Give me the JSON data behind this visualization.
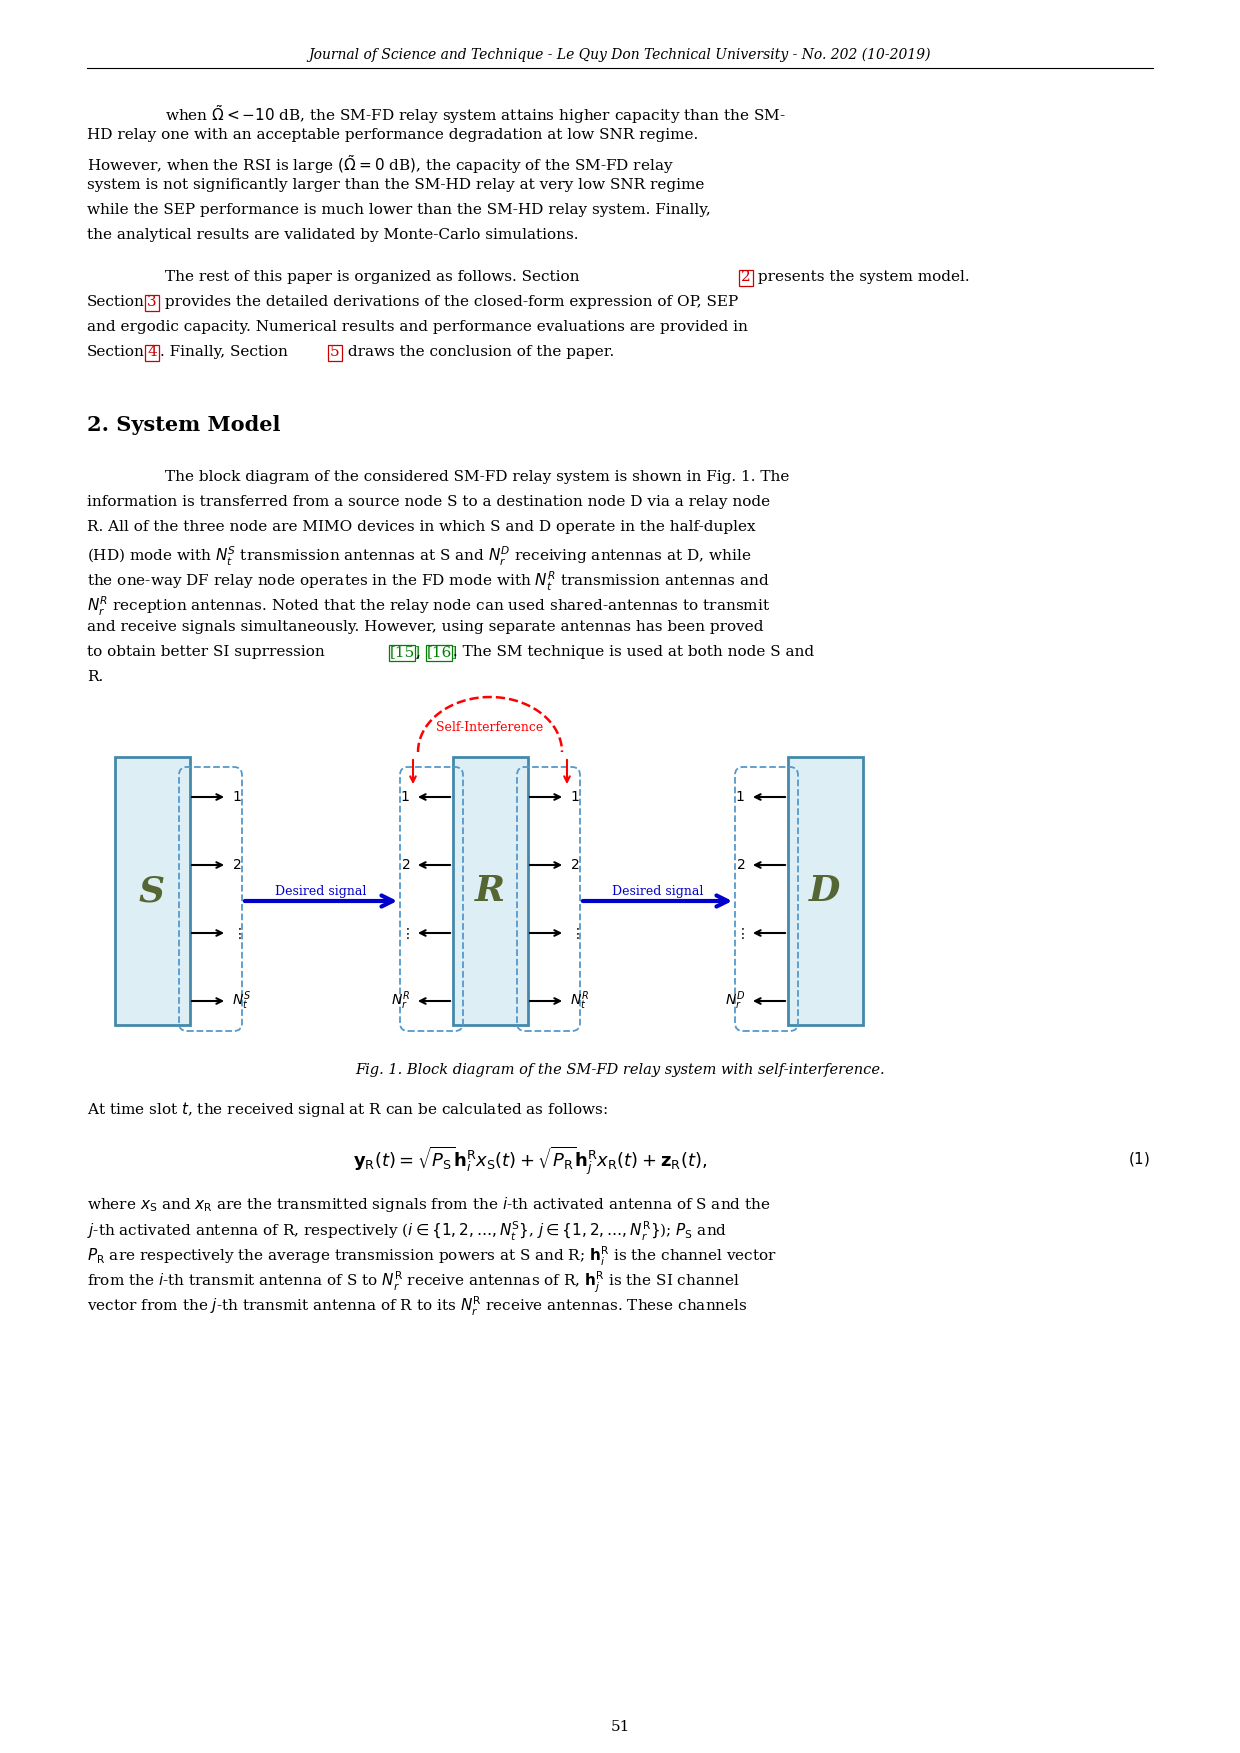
{
  "header": "Journal of Science and Technique - Le Quy Don Technical University - No. 202 (10-2019)",
  "section_title": "2. System Model",
  "fig_caption": "Fig. 1. Block diagram of the SM-FD relay system with self-interference.",
  "page_number": "51",
  "background_color": "#ffffff",
  "text_color": "#000000",
  "header_color": "#000000",
  "link_color": "#cc0000",
  "green_color": "#008000",
  "blue_color": "#0000cc",
  "node_fill": "#ddeef5",
  "node_edge": "#4488aa",
  "dash_edge": "#5599cc"
}
